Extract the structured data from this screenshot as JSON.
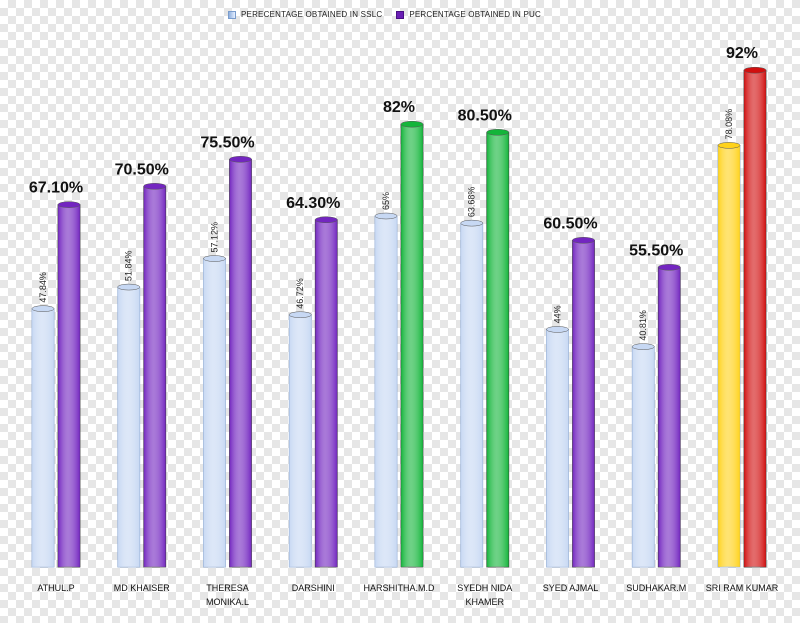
{
  "legend": {
    "sslc": "PERECENTAGE OBTAINED IN SSLC",
    "puc": "PERCENTAGE OBTAINED IN PUC"
  },
  "chart_data": {
    "type": "bar",
    "categories": [
      "ATHUL.P",
      "MD KHAISER",
      "THERESA MONIKA.L",
      "DARSHINI",
      "HARSHITHA.M.D",
      "SYEDH NIDA KHAMER",
      "SYED AJMAL",
      "SUDHAKAR.M",
      "SRI RAM KUMAR"
    ],
    "category_lines": [
      [
        "ATHUL.P"
      ],
      [
        "MD KHAISER"
      ],
      [
        "THERESA",
        "MONIKA.L"
      ],
      [
        "DARSHINI"
      ],
      [
        "HARSHITHA.M.D"
      ],
      [
        "SYEDH NIDA",
        "KHAMER"
      ],
      [
        "SYED AJMAL"
      ],
      [
        "SUDHAKAR.M"
      ],
      [
        "SRI RAM KUMAR"
      ]
    ],
    "series": [
      {
        "name": "PERECENTAGE OBTAINED IN SSLC",
        "values": [
          47.84,
          51.84,
          57.12,
          46.72,
          65,
          63.68,
          44,
          40.81,
          78.08
        ],
        "labels": [
          "47.84%",
          "51.84%",
          "57.12%",
          "46.72%",
          "65%",
          "63.68%",
          "44%",
          "40.81%",
          "78.08%"
        ],
        "colors": [
          "#c7d8f3",
          "#c7d8f3",
          "#c7d8f3",
          "#c7d8f3",
          "#c7d8f3",
          "#c7d8f3",
          "#c7d8f3",
          "#c7d8f3",
          "#ffd21a"
        ]
      },
      {
        "name": "PERCENTAGE OBTAINED IN PUC",
        "values": [
          67.1,
          70.5,
          75.5,
          64.3,
          82,
          80.5,
          60.5,
          55.5,
          92
        ],
        "labels": [
          "67.10%",
          "70.50%",
          "75.50%",
          "64.30%",
          "82%",
          "80.50%",
          "60.50%",
          "55.50%",
          "92%"
        ],
        "colors": [
          "#7326c0",
          "#7326c0",
          "#7326c0",
          "#7326c0",
          "#13b53a",
          "#13b53a",
          "#7326c0",
          "#7326c0",
          "#d10f0f"
        ]
      }
    ],
    "title": "",
    "xlabel": "",
    "ylabel": "",
    "ylim": [
      0,
      100
    ],
    "grid": false,
    "legend_position": "top-center"
  }
}
